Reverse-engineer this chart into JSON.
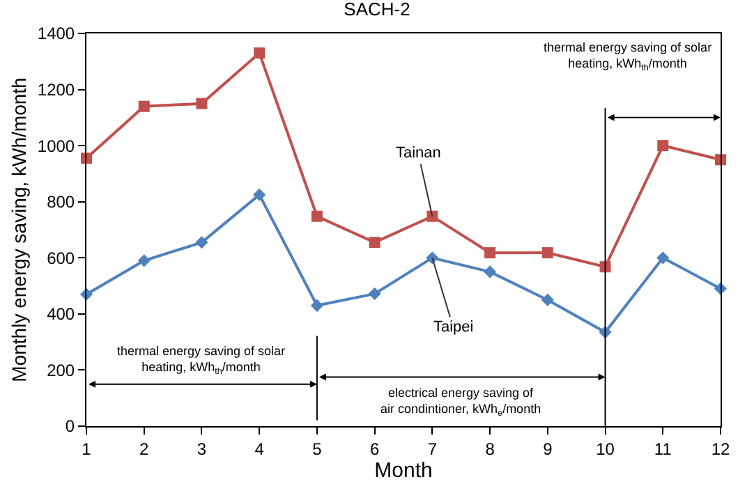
{
  "chart_data": {
    "type": "line",
    "title": "SACH-2",
    "xlabel": "Month",
    "ylabel": "Monthly energy saving, kWh/month",
    "x": [
      1,
      2,
      3,
      4,
      5,
      6,
      7,
      8,
      9,
      10,
      11,
      12
    ],
    "series": [
      {
        "name": "Tainan",
        "color": "#c0504d",
        "marker": "square",
        "values": [
          955,
          1140,
          1150,
          1330,
          748,
          655,
          748,
          618,
          618,
          568,
          1000,
          950
        ]
      },
      {
        "name": "Taipei",
        "color": "#4f81bd",
        "marker": "diamond",
        "values": [
          470,
          590,
          655,
          825,
          430,
          472,
          600,
          550,
          450,
          335,
          600,
          490
        ]
      }
    ],
    "xlim": [
      1,
      12
    ],
    "xticks": [
      1,
      2,
      3,
      4,
      5,
      6,
      7,
      8,
      9,
      10,
      11,
      12
    ],
    "ylim": [
      0,
      1400
    ],
    "yticks": [
      0,
      200,
      400,
      600,
      800,
      1000,
      1200,
      1400
    ],
    "legend": false,
    "ref_lines": [
      {
        "axis": "x",
        "value": 5,
        "color": "#000000"
      },
      {
        "axis": "x",
        "value": 10,
        "color": "#000000"
      }
    ],
    "annotations": [
      "thermal energy saving of solar heating, kWh$_{th}$/month",
      "electrical energy saving of air condintioner, kWh$_{e}$/month",
      "thermal energy saving of solar heating, kWh$_{th}$/month"
    ]
  }
}
